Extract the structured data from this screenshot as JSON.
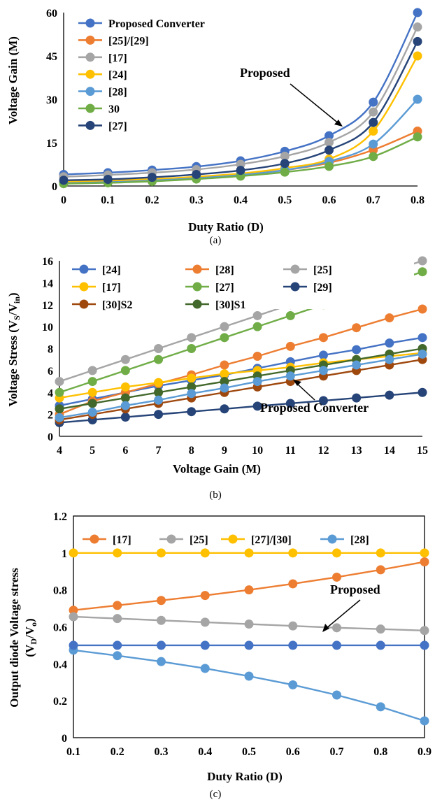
{
  "chart_data": [
    {
      "type": "line",
      "caption": "(a)",
      "xlabel": "Duty Ratio  (D)",
      "ylabel": "Voltage Gain (M)",
      "x": [
        0,
        0.1,
        0.2,
        0.3,
        0.4,
        0.5,
        0.6,
        0.7,
        0.8
      ],
      "x_ticks": [
        "0",
        "0.1",
        "0.2",
        "0.3",
        "0.4",
        "0.5",
        "0.6",
        "0.7",
        "0.8"
      ],
      "ylim": [
        0,
        60
      ],
      "y_ticks": [
        "0",
        "15",
        "30",
        "45",
        "60"
      ],
      "series": [
        {
          "name": "Proposed Converter",
          "color": "#4472C4",
          "values": [
            4,
            4.6,
            5.5,
            6.7,
            8.7,
            12,
            17.4,
            29,
            60
          ]
        },
        {
          "name": "[25]/[29]",
          "color": "#ED7D31",
          "values": [
            1.3,
            1.6,
            2.1,
            2.9,
            3.9,
            5.5,
            8,
            12.5,
            19
          ]
        },
        {
          "name": "[17]",
          "color": "#A5A5A5",
          "values": [
            3.2,
            3.8,
            4.6,
            5.7,
            7.5,
            10.3,
            15.1,
            25.6,
            55
          ]
        },
        {
          "name": "[24]",
          "color": "#FFC000",
          "values": [
            1.5,
            1.9,
            2.4,
            3.2,
            4.3,
            6.2,
            9.3,
            19,
            45
          ]
        },
        {
          "name": "[28]",
          "color": "#5B9BD5",
          "values": [
            1,
            1.3,
            1.9,
            2.7,
            3.8,
            5.5,
            8.5,
            14.5,
            30
          ]
        },
        {
          "name": "30",
          "color": "#70AD47",
          "values": [
            0.8,
            1.1,
            1.6,
            2.4,
            3.4,
            4.8,
            6.8,
            10.2,
            17
          ]
        },
        {
          "name": "[27]",
          "color": "#264478",
          "values": [
            2,
            2.3,
            3,
            4,
            5.4,
            7.8,
            12.4,
            22,
            50
          ]
        }
      ],
      "annotation": "Proposed"
    },
    {
      "type": "line",
      "caption": "(b)",
      "xlabel": "Voltage Gain (M)",
      "ylabel_main": "Voltage Stress (V",
      "ylabel_sub1": "S",
      "ylabel_mid": "/V",
      "ylabel_sub2": "in",
      "ylabel_end": ")",
      "x": [
        4,
        5,
        6,
        7,
        8,
        9,
        10,
        11,
        12,
        13,
        14,
        15
      ],
      "x_ticks": [
        "4",
        "5",
        "6",
        "7",
        "8",
        "9",
        "10",
        "11",
        "12",
        "13",
        "14",
        "15"
      ],
      "ylim": [
        0,
        16
      ],
      "y_ticks": [
        "0",
        "2",
        "4",
        "6",
        "8",
        "10",
        "12",
        "14",
        "16"
      ],
      "series": [
        {
          "name": "[24]",
          "color": "#4472C4",
          "values": [
            2.8,
            3.4,
            4.0,
            4.6,
            5.1,
            5.6,
            6.2,
            6.8,
            7.4,
            7.9,
            8.5,
            9.0
          ]
        },
        {
          "name": "[28]",
          "color": "#ED7D31",
          "values": [
            2.0,
            3.2,
            4.0,
            4.8,
            5.6,
            6.5,
            7.3,
            8.2,
            9.0,
            9.9,
            10.8,
            11.6
          ]
        },
        {
          "name": "[25]",
          "color": "#A5A5A5",
          "values": [
            5,
            6,
            7,
            8,
            9,
            10,
            11,
            12,
            13,
            14,
            15,
            16
          ]
        },
        {
          "name": "[17]",
          "color": "#FFC000",
          "values": [
            3.5,
            4.0,
            4.5,
            4.9,
            5.3,
            5.7,
            6.0,
            6.3,
            6.7,
            7.0,
            7.3,
            7.6
          ]
        },
        {
          "name": "[27]",
          "color": "#70AD47",
          "values": [
            4,
            5,
            6,
            7,
            8,
            9,
            10,
            11,
            12,
            13,
            14,
            15
          ]
        },
        {
          "name": "[29]",
          "color": "#264478",
          "values": [
            1.25,
            1.5,
            1.75,
            2.0,
            2.25,
            2.5,
            2.75,
            3.0,
            3.25,
            3.5,
            3.75,
            4.0
          ]
        },
        {
          "name": "[30]S2",
          "color": "#9E480E",
          "values": [
            1.5,
            2.0,
            2.5,
            3.0,
            3.5,
            4.0,
            4.5,
            5.0,
            5.5,
            6.0,
            6.5,
            7.0
          ]
        },
        {
          "name": "[30]S1",
          "color": "#43682B",
          "values": [
            2.5,
            3.0,
            3.5,
            4.0,
            4.5,
            5.0,
            5.5,
            6.0,
            6.5,
            7.0,
            7.5,
            8.0
          ]
        },
        {
          "name": "Proposed Converter",
          "color": "#5B9BD5",
          "values": [
            1.7,
            2.2,
            2.8,
            3.3,
            3.9,
            4.4,
            5.0,
            5.5,
            6.0,
            6.5,
            7.0,
            7.5
          ]
        }
      ],
      "legend_names": [
        "[24]",
        "[28]",
        "[25]",
        "[17]",
        "[27]",
        "[29]",
        "[30]S2",
        "[30]S1"
      ],
      "annotation": "Proposed Converter"
    },
    {
      "type": "line",
      "caption": "(c)",
      "xlabel": "Duty Ratio (D)",
      "ylabel_line1": "Output  diode Voltage stress",
      "ylabel_line2_main": "(V",
      "ylabel_line2_sub1": "D",
      "ylabel_line2_mid": "/V",
      "ylabel_line2_sub2": "o",
      "ylabel_line2_end": ")",
      "x": [
        0.1,
        0.2,
        0.3,
        0.4,
        0.5,
        0.6,
        0.7,
        0.8,
        0.9
      ],
      "x_ticks": [
        "0.1",
        "0.2",
        "0.3",
        "0.4",
        "0.5",
        "0.6",
        "0.7",
        "0.8",
        "0.9"
      ],
      "ylim": [
        0,
        1.2
      ],
      "y_ticks": [
        "0",
        "0.2",
        "0.4",
        "0.6",
        "0.8",
        "1",
        "1.2"
      ],
      "series": [
        {
          "name": "[17]",
          "color": "#ED7D31",
          "values": [
            0.69,
            0.716,
            0.743,
            0.77,
            0.8,
            0.833,
            0.869,
            0.909,
            0.952
          ]
        },
        {
          "name": "[25]",
          "color": "#A5A5A5",
          "values": [
            0.655,
            0.645,
            0.635,
            0.625,
            0.615,
            0.605,
            0.595,
            0.588,
            0.58
          ]
        },
        {
          "name": "[27]/[30]",
          "color": "#FFC000",
          "values": [
            1,
            1,
            1,
            1,
            1,
            1,
            1,
            1,
            1
          ]
        },
        {
          "name": "[28]",
          "color": "#5B9BD5",
          "values": [
            0.474,
            0.444,
            0.412,
            0.375,
            0.333,
            0.286,
            0.231,
            0.167,
            0.091
          ]
        },
        {
          "name": "Proposed",
          "color": "#4472C4",
          "values": [
            0.5,
            0.5,
            0.5,
            0.5,
            0.5,
            0.5,
            0.5,
            0.5,
            0.5
          ]
        }
      ],
      "legend_names": [
        "[17]",
        "[25]",
        "[27]/[30]",
        "[28]"
      ],
      "annotation": "Proposed"
    }
  ]
}
